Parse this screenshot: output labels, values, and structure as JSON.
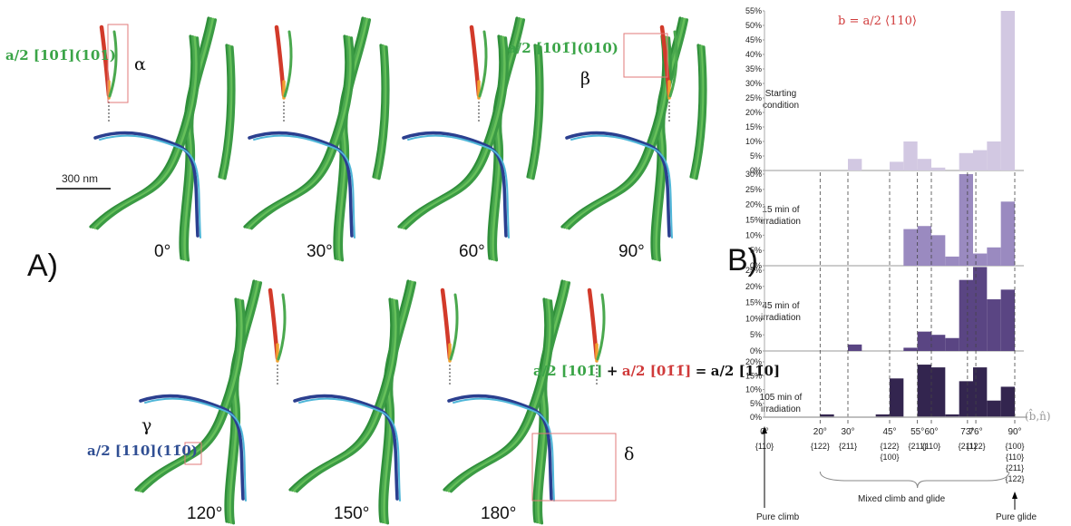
{
  "panelA": {
    "label": "A)",
    "scale_bar": "300 nm",
    "angles": [
      "0°",
      "30°",
      "60°",
      "90°",
      "120°",
      "150°",
      "180°"
    ],
    "greek": {
      "alpha": "α",
      "beta": "β",
      "gamma": "γ",
      "delta": "δ"
    },
    "burgers_alpha": "a/2 [101̄](101)",
    "burgers_beta": "a/2 [101̄](010)",
    "burgers_gamma": "a/2 [110](11̄0)",
    "reaction": {
      "t1": "a/2 [101̄]",
      "plus": "+",
      "t2": "a/2 [01̄1̄]",
      "eq": "=",
      "t3": "a/2 [11̄0]"
    }
  },
  "panelB": {
    "label": "B)",
    "header": "b = a/2 ⟨110⟩",
    "x_axis_label": "(b̂,n̂)",
    "bottom_labels": {
      "pure_climb": "Pure climb",
      "mixed": "Mixed climb and glide",
      "pure_glide": "Pure glide"
    }
  },
  "chart_data": {
    "type": "bar",
    "x_ticks": [
      "0°",
      "20°",
      "30°",
      "45°",
      "55°",
      "60°",
      "73°",
      "76°",
      "90°"
    ],
    "x_tick_values": [
      0,
      20,
      30,
      45,
      55,
      60,
      73,
      76,
      90
    ],
    "planes": {
      "0": "{110}",
      "20": "{122}",
      "30": "{211}",
      "45": "{122} {100}",
      "55": "{211}",
      "60": "{110}",
      "73": "{211}",
      "76": "{122}",
      "90": "{100} {110} {211} {122}"
    },
    "bin_edges": [
      0,
      5,
      10,
      15,
      20,
      25,
      30,
      35,
      40,
      45,
      50,
      55,
      60,
      65,
      70,
      75,
      80,
      85,
      90
    ],
    "subplots": [
      {
        "name": "Starting condition",
        "color": "#d2c8e2",
        "ylim": [
          0,
          55
        ],
        "yticks": [
          "0%",
          "5%",
          "10%",
          "15%",
          "20%",
          "25%",
          "30%",
          "35%",
          "40%",
          "45%",
          "50%",
          "55%"
        ],
        "values": [
          0,
          0,
          0,
          0,
          0,
          0,
          4,
          0,
          0,
          3,
          10,
          4,
          1,
          0,
          6,
          7,
          10,
          55
        ]
      },
      {
        "name": "15 min of irradiation",
        "color": "#9a8ac0",
        "ylim": [
          0,
          30
        ],
        "yticks": [
          "0%",
          "5%",
          "10%",
          "15%",
          "20%",
          "25%",
          "30%"
        ],
        "values": [
          0,
          0,
          0,
          0,
          0,
          0,
          0,
          0,
          0,
          0,
          12,
          13,
          10,
          3,
          30,
          4,
          6,
          21
        ]
      },
      {
        "name": "45 min of irradiation",
        "color": "#5a4583",
        "ylim": [
          0,
          25
        ],
        "yticks": [
          "0%",
          "5%",
          "10%",
          "15%",
          "20%",
          "25%"
        ],
        "values": [
          0,
          0,
          0,
          0,
          0,
          0,
          2,
          0,
          0,
          0,
          1,
          6,
          5,
          4,
          22,
          26,
          16,
          19
        ]
      },
      {
        "name": "105 min of irradiation",
        "color": "#33254f",
        "ylim": [
          0,
          20
        ],
        "yticks": [
          "0%",
          "5%",
          "10%",
          "15%",
          "20%"
        ],
        "values": [
          0,
          0,
          0,
          0,
          1,
          0,
          0,
          0,
          1,
          14,
          0,
          19,
          18,
          1,
          13,
          18,
          6,
          11
        ]
      }
    ]
  }
}
